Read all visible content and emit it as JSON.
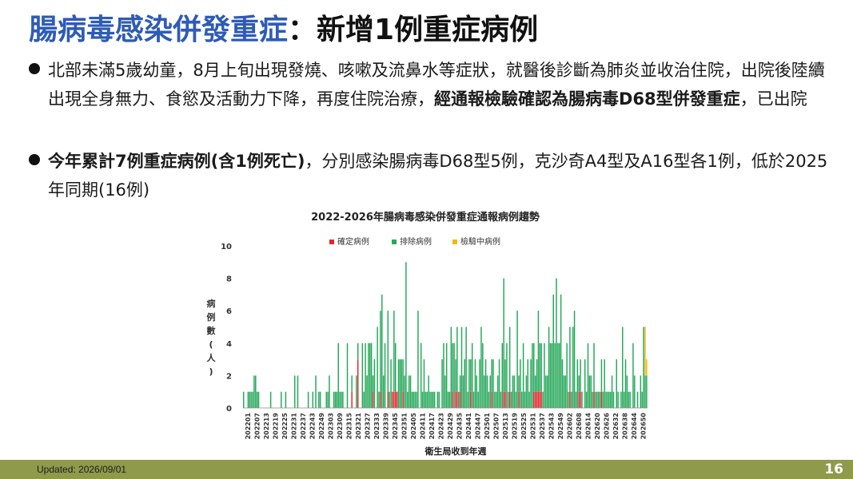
{
  "title": {
    "part1": "腸病毒感染併發重症",
    "part2": "：新增1例重症病例"
  },
  "bullets": [
    {
      "text_a": "北部未滿5歲幼童，8月上旬出現發燒、咳嗽及流鼻水等症狀，就醫後診斷為肺炎並收治住院，出院後陸續出現全身無力、食慾及活動力下降，再度住院治療，",
      "bold": "經通報檢驗確認為腸病毒D68型併發重症",
      "text_b": "，已出院"
    },
    {
      "bold": "今年累計7例重症病例(含1例死亡)",
      "text_b": "，分別感染腸病毒D68型5例，克沙奇A4型及A16型各1例，低於2025 年同期(16例)"
    }
  ],
  "footer": {
    "updated": "Updated: 2026/09/01",
    "page": "16"
  },
  "chart_data": {
    "type": "bar",
    "stacked": true,
    "title": "2022-2026年腸病毒感染併發重症通報病例趨勢",
    "xlabel": "衛生局收到年週",
    "ylabel": "病例數(人)",
    "ylim": [
      0,
      10
    ],
    "yticks": [
      0,
      2,
      4,
      6,
      8,
      10
    ],
    "grid": false,
    "legend": "top",
    "x_tick_labels": [
      "202201",
      "202207",
      "202213",
      "202219",
      "202225",
      "202231",
      "202237",
      "202243",
      "202249",
      "202303",
      "202309",
      "202315",
      "202321",
      "202327",
      "202333",
      "202339",
      "202345",
      "202351",
      "202405",
      "202411",
      "202417",
      "202423",
      "202429",
      "202435",
      "202441",
      "202447",
      "202501",
      "202507",
      "202513",
      "202519",
      "202525",
      "202531",
      "202537",
      "202543",
      "202549",
      "202602",
      "202608",
      "202614",
      "202620",
      "202626",
      "202632",
      "202638",
      "202644",
      "202650"
    ],
    "series": [
      {
        "name": "確定病例",
        "color": "#e0282e"
      },
      {
        "name": "排除病例",
        "color": "#27a85a"
      },
      {
        "name": "檢驗中病例",
        "color": "#f2b90c"
      }
    ],
    "weeks": {
      "start_label": "202201",
      "confirmed": [
        0,
        0,
        0,
        0,
        0,
        0,
        0,
        0,
        0,
        0,
        0,
        0,
        0,
        0,
        0,
        0,
        0,
        0,
        0,
        0,
        0,
        0,
        0,
        0,
        0,
        0,
        0,
        0,
        0,
        0,
        0,
        0,
        0,
        0,
        0,
        0,
        0,
        0,
        0,
        0,
        0,
        0,
        0,
        0,
        0,
        0,
        0,
        0,
        0,
        0,
        0,
        0,
        0,
        0,
        0,
        0,
        0,
        0,
        0,
        0,
        0,
        0,
        0,
        0,
        0,
        0,
        0,
        0,
        0,
        0,
        0,
        0,
        1,
        0,
        0,
        0,
        3,
        0,
        0,
        0,
        0,
        0,
        0,
        0,
        0,
        0,
        1,
        0,
        0,
        0,
        0,
        1,
        0,
        0,
        0,
        0,
        1,
        0,
        0,
        1,
        1,
        1,
        1,
        0,
        0,
        0,
        1,
        0,
        0,
        0,
        0,
        0,
        0,
        0,
        0,
        0,
        0,
        0,
        0,
        0,
        0,
        0,
        0,
        0,
        0,
        0,
        0,
        0,
        0,
        0,
        0,
        0,
        0,
        0,
        0,
        0,
        0,
        0,
        0,
        1,
        0,
        1,
        1,
        0,
        1,
        0,
        0,
        0,
        0,
        0,
        0,
        1,
        0,
        0,
        0,
        0,
        0,
        0,
        0,
        0,
        0,
        0,
        0,
        0,
        0,
        1,
        0,
        0,
        0,
        0,
        0,
        0,
        0,
        1,
        1,
        0,
        0,
        1,
        0,
        0,
        0,
        0,
        0,
        1,
        0,
        0,
        0,
        0,
        0,
        0,
        0,
        0,
        0,
        1,
        1,
        1,
        1,
        1,
        1,
        0,
        0,
        0,
        0,
        0,
        0,
        0,
        0,
        0,
        0,
        0,
        0,
        0,
        0,
        0,
        0,
        0,
        0,
        1,
        0,
        0,
        0,
        0,
        0,
        1,
        1,
        0,
        0,
        0,
        0,
        0,
        0,
        0,
        0,
        1,
        0,
        0,
        0,
        0,
        1,
        0,
        0,
        0,
        0,
        0,
        0,
        0,
        0,
        0,
        0
      ],
      "excluded": [
        1,
        0,
        0,
        1,
        1,
        1,
        1,
        2,
        2,
        1,
        1,
        0,
        0,
        0,
        0,
        0,
        0,
        0,
        1,
        0,
        0,
        0,
        0,
        0,
        0,
        1,
        0,
        0,
        1,
        0,
        0,
        0,
        0,
        0,
        2,
        0,
        2,
        0,
        0,
        0,
        0,
        0,
        0,
        1,
        0,
        0,
        1,
        0,
        2,
        0,
        1,
        1,
        0,
        0,
        0,
        1,
        1,
        2,
        0,
        0,
        1,
        1,
        1,
        4,
        1,
        1,
        1,
        0,
        0,
        4,
        0,
        0,
        1,
        0,
        0,
        2,
        1,
        0,
        0,
        4,
        1,
        4,
        2,
        4,
        4,
        4,
        1,
        3,
        0,
        5,
        1,
        5,
        7,
        2,
        4,
        0,
        5,
        1,
        3,
        0,
        5,
        3,
        0,
        3,
        3,
        3,
        2,
        2,
        9,
        1,
        2,
        2,
        1,
        1,
        1,
        1,
        6,
        0,
        4,
        1,
        3,
        1,
        1,
        2,
        1,
        1,
        1,
        1,
        0,
        1,
        1,
        0,
        3,
        4,
        2,
        4,
        1,
        1,
        5,
        3,
        4,
        2,
        4,
        1,
        1,
        5,
        2,
        3,
        5,
        1,
        3,
        2,
        4,
        1,
        3,
        2,
        1,
        3,
        5,
        4,
        2,
        3,
        2,
        1,
        2,
        2,
        3,
        1,
        1,
        2,
        3,
        1,
        4,
        7,
        2,
        4,
        1,
        4,
        1,
        2,
        2,
        1,
        6,
        1,
        3,
        1,
        4,
        1,
        2,
        3,
        1,
        3,
        4,
        3,
        1,
        2,
        5,
        3,
        3,
        1,
        4,
        2,
        2,
        5,
        4,
        4,
        7,
        4,
        8,
        4,
        4,
        7,
        3,
        2,
        2,
        4,
        1,
        4,
        1,
        5,
        6,
        1,
        3,
        1,
        2,
        1,
        0,
        3,
        1,
        4,
        2,
        2,
        1,
        3,
        1,
        1,
        1,
        1,
        2,
        1,
        3,
        1,
        1,
        1,
        1,
        2,
        1,
        0,
        3,
        1,
        0,
        1,
        5,
        1,
        3,
        2,
        1,
        1,
        0,
        4,
        2,
        0,
        1,
        0,
        2,
        1,
        5,
        2,
        2
      ],
      "pending": [
        0,
        0,
        0,
        0,
        0,
        0,
        0,
        0,
        0,
        0,
        0,
        0,
        0,
        0,
        0,
        0,
        0,
        0,
        0,
        0,
        0,
        0,
        0,
        0,
        0,
        0,
        0,
        0,
        0,
        0,
        0,
        0,
        0,
        0,
        0,
        0,
        0,
        0,
        0,
        0,
        0,
        0,
        0,
        0,
        0,
        0,
        0,
        0,
        0,
        0,
        0,
        0,
        0,
        0,
        0,
        0,
        0,
        0,
        0,
        0,
        0,
        0,
        0,
        0,
        0,
        0,
        0,
        0,
        0,
        0,
        0,
        0,
        0,
        0,
        0,
        0,
        0,
        0,
        0,
        0,
        0,
        0,
        0,
        0,
        0,
        0,
        0,
        0,
        0,
        0,
        0,
        0,
        0,
        0,
        0,
        0,
        0,
        0,
        0,
        0,
        0,
        0,
        0,
        0,
        0,
        0,
        0,
        0,
        0,
        0,
        0,
        0,
        0,
        0,
        0,
        0,
        0,
        0,
        0,
        0,
        0,
        0,
        0,
        0,
        0,
        0,
        0,
        0,
        0,
        0,
        0,
        0,
        0,
        0,
        0,
        0,
        0,
        0,
        0,
        0,
        0,
        0,
        0,
        0,
        0,
        0,
        0,
        0,
        0,
        0,
        0,
        0,
        0,
        0,
        0,
        0,
        0,
        0,
        0,
        0,
        0,
        0,
        0,
        0,
        0,
        0,
        0,
        0,
        0,
        0,
        0,
        0,
        0,
        0,
        0,
        0,
        0,
        0,
        0,
        0,
        0,
        0,
        0,
        0,
        0,
        0,
        0,
        0,
        0,
        0,
        0,
        0,
        0,
        0,
        0,
        0,
        0,
        0,
        0,
        0,
        0,
        0,
        0,
        0,
        0,
        0,
        0,
        0,
        0,
        0,
        0,
        0,
        0,
        0,
        0,
        0,
        0,
        0,
        0,
        0,
        0,
        0,
        0,
        0,
        0,
        0,
        0,
        0,
        0,
        0,
        0,
        0,
        0,
        0,
        0,
        0,
        0,
        0,
        0,
        0,
        0,
        0,
        0,
        0,
        0,
        0,
        0,
        0,
        0,
        0,
        0,
        0,
        0,
        0,
        0,
        0,
        0,
        0,
        0,
        0,
        0,
        0,
        0,
        0,
        0,
        0,
        0,
        3,
        1
      ]
    }
  }
}
